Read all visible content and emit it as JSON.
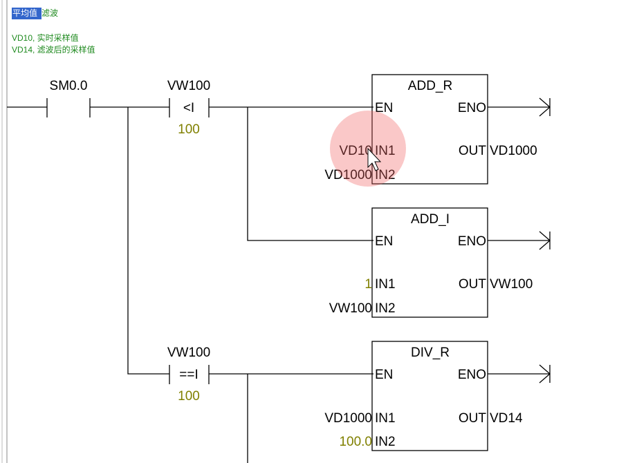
{
  "comment": {
    "title_highlight": "平均值",
    "title_rest": "滤波",
    "lines": [
      "VD10, 实时采样值",
      "VD14, 滤波后的采样值"
    ]
  },
  "contacts": [
    {
      "address": "SM0.0"
    },
    {
      "address": "VW100",
      "op": "<I",
      "operand": "100"
    },
    {
      "address": "VW100",
      "op": "==I",
      "operand": "100"
    }
  ],
  "boxes": [
    {
      "name": "ADD_R",
      "en": "EN",
      "eno": "ENO",
      "in1_label": "IN1",
      "in2_label": "IN2",
      "out_label": "OUT",
      "in1": "VD10",
      "in2": "VD1000",
      "out": "VD1000"
    },
    {
      "name": "ADD_I",
      "en": "EN",
      "eno": "ENO",
      "in1_label": "IN1",
      "in2_label": "IN2",
      "out_label": "OUT",
      "in1": "1",
      "in2": "VW100",
      "out": "VW100"
    },
    {
      "name": "DIV_R",
      "en": "EN",
      "eno": "ENO",
      "in1_label": "IN1",
      "in2_label": "IN2",
      "out_label": "OUT",
      "in1": "VD1000",
      "in2": "100.0",
      "out": "VD14"
    }
  ]
}
